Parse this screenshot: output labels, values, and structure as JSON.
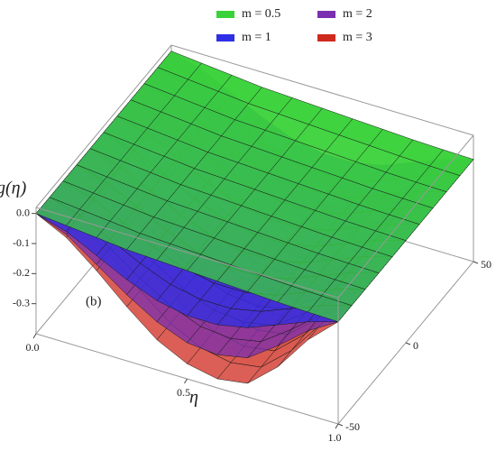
{
  "chart_data": {
    "type": "surface3d",
    "xlabel": "η",
    "zlabel": "g(η)",
    "annotation": "(b)",
    "x": [
      0,
      0.1,
      0.2,
      0.3,
      0.4,
      0.5,
      0.6,
      0.7,
      0.8,
      0.9,
      1.0
    ],
    "xlim": [
      0,
      1
    ],
    "xticks": [
      {
        "value": 0,
        "label": "0.0"
      },
      0.5,
      {
        "value": 1,
        "label": "1.0"
      }
    ],
    "ylim": [
      -50,
      50
    ],
    "yticks": [
      -50,
      0,
      50
    ],
    "zlim": [
      -0.4,
      0.02
    ],
    "zticks": [
      {
        "value": 0,
        "label": "0.0"
      },
      -0.1,
      -0.2,
      -0.3
    ],
    "legend": "top",
    "series": [
      {
        "name": "m = 0.5",
        "color": "#3ad23a",
        "values": [
          0,
          -0.01,
          -0.02,
          -0.03,
          -0.035,
          -0.04,
          -0.045,
          -0.05,
          -0.055,
          -0.058,
          -0.06
        ]
      },
      {
        "name": "m = 1",
        "color": "#2f2fe6",
        "values": [
          0,
          -0.03,
          -0.08,
          -0.13,
          -0.17,
          -0.19,
          -0.19,
          -0.17,
          -0.13,
          -0.09,
          -0.06
        ]
      },
      {
        "name": "m = 2",
        "color": "#7a2fb0",
        "values": [
          0,
          -0.04,
          -0.11,
          -0.18,
          -0.24,
          -0.28,
          -0.29,
          -0.27,
          -0.2,
          -0.12,
          -0.06
        ]
      },
      {
        "name": "m = 3",
        "color": "#cf2a1e",
        "values": [
          0,
          -0.05,
          -0.13,
          -0.22,
          -0.3,
          -0.35,
          -0.37,
          -0.355,
          -0.27,
          -0.15,
          -0.06
        ]
      }
    ]
  }
}
